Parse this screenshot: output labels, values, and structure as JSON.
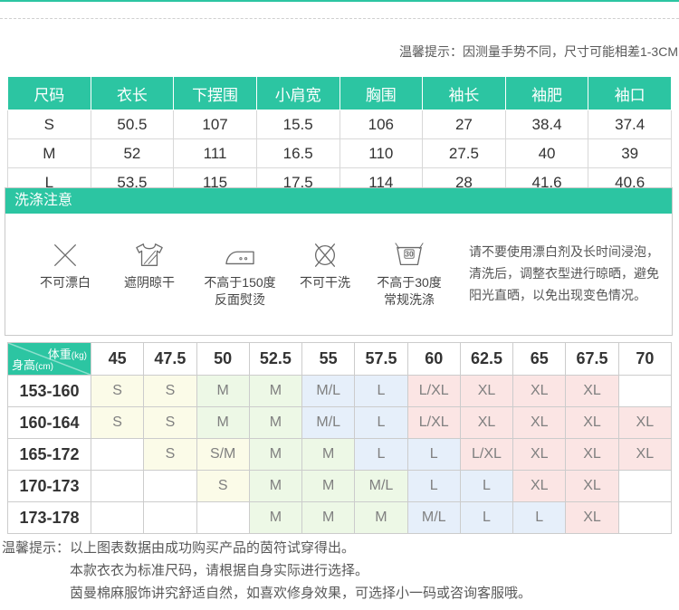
{
  "top_note": "温馨提示：因测量手势不同，尺寸可能相差1-3CM",
  "size_table": {
    "headers": [
      "尺码",
      "衣长",
      "下摆围",
      "小肩宽",
      "胸围",
      "袖长",
      "袖肥",
      "袖口"
    ],
    "rows": [
      [
        "S",
        "50.5",
        "107",
        "15.5",
        "106",
        "27",
        "38.4",
        "37.4"
      ],
      [
        "M",
        "52",
        "111",
        "16.5",
        "110",
        "27.5",
        "40",
        "39"
      ],
      [
        "L",
        "53.5",
        "115",
        "17.5",
        "114",
        "28",
        "41.6",
        "40.6"
      ]
    ]
  },
  "washing": {
    "title": "洗涤注意",
    "icons": [
      {
        "icon": "no-bleach-icon",
        "label_lines": [
          "不可漂白"
        ]
      },
      {
        "icon": "shade-dry-icon",
        "label_lines": [
          "遮阴晾干"
        ]
      },
      {
        "icon": "iron-150-icon",
        "label_lines": [
          "不高于150度",
          "反面熨烫"
        ]
      },
      {
        "icon": "no-dry-clean-icon",
        "label_lines": [
          "不可干洗"
        ]
      },
      {
        "icon": "wash-30-icon",
        "label_lines": [
          "不高于30度",
          "常规洗涤"
        ],
        "badge": "30"
      }
    ],
    "note_lines": [
      "请不要使用漂白剂及长时间浸泡，",
      "清洗后，调整衣型进行晾晒，避免",
      "阳光直晒，以免出现变色情况。"
    ]
  },
  "matrix": {
    "corner": {
      "weight": "体重",
      "weight_unit": "(kg)",
      "height": "身高",
      "height_unit": "(cm)"
    },
    "weights": [
      "45",
      "47.5",
      "50",
      "52.5",
      "55",
      "57.5",
      "60",
      "62.5",
      "65",
      "67.5",
      "70"
    ],
    "rows": [
      {
        "label": "153-160",
        "cells": [
          [
            "S",
            "cream"
          ],
          [
            "S",
            "cream"
          ],
          [
            "M",
            "green"
          ],
          [
            "M",
            "green"
          ],
          [
            "M/L",
            "blue"
          ],
          [
            "L",
            "blue"
          ],
          [
            "L/XL",
            "pink"
          ],
          [
            "XL",
            "pink"
          ],
          [
            "XL",
            "pink"
          ],
          [
            "XL",
            "pink"
          ],
          [
            "",
            "white"
          ]
        ]
      },
      {
        "label": "160-164",
        "cells": [
          [
            "S",
            "cream"
          ],
          [
            "S",
            "cream"
          ],
          [
            "M",
            "green"
          ],
          [
            "M",
            "green"
          ],
          [
            "M/L",
            "blue"
          ],
          [
            "L",
            "blue"
          ],
          [
            "L/XL",
            "pink"
          ],
          [
            "XL",
            "pink"
          ],
          [
            "XL",
            "pink"
          ],
          [
            "XL",
            "pink"
          ],
          [
            "XL",
            "pink"
          ]
        ]
      },
      {
        "label": "165-172",
        "cells": [
          [
            "",
            "white"
          ],
          [
            "S",
            "cream"
          ],
          [
            "S/M",
            "cream"
          ],
          [
            "M",
            "green"
          ],
          [
            "M",
            "green"
          ],
          [
            "L",
            "blue"
          ],
          [
            "L",
            "blue"
          ],
          [
            "L/XL",
            "pink"
          ],
          [
            "XL",
            "pink"
          ],
          [
            "XL",
            "pink"
          ],
          [
            "XL",
            "pink"
          ]
        ]
      },
      {
        "label": "170-173",
        "cells": [
          [
            "",
            "white"
          ],
          [
            "",
            "white"
          ],
          [
            "S",
            "cream"
          ],
          [
            "M",
            "green"
          ],
          [
            "M",
            "green"
          ],
          [
            "M/L",
            "green"
          ],
          [
            "L",
            "blue"
          ],
          [
            "L",
            "blue"
          ],
          [
            "XL",
            "pink"
          ],
          [
            "XL",
            "pink"
          ],
          [
            "",
            "white"
          ]
        ]
      },
      {
        "label": "173-178",
        "cells": [
          [
            "",
            "white"
          ],
          [
            "",
            "white"
          ],
          [
            "",
            "white"
          ],
          [
            "M",
            "green"
          ],
          [
            "M",
            "green"
          ],
          [
            "M",
            "green"
          ],
          [
            "M/L",
            "blue"
          ],
          [
            "L",
            "blue"
          ],
          [
            "L",
            "blue"
          ],
          [
            "XL",
            "pink"
          ],
          [
            "",
            "white"
          ]
        ]
      }
    ]
  },
  "cell_colors": {
    "cream": "#fbfbe8",
    "green": "#edf8e6",
    "blue": "#e6effa",
    "pink": "#fbe5e4",
    "white": "#ffffff"
  },
  "accent_color": "#2cc5a2",
  "bottom_tips": {
    "label": "温馨提示：",
    "lines": [
      "以上图表数据由成功购买产品的茵符试穿得出。",
      "本款衣衣为标准尺码，请根据自身实际进行选择。",
      "茵曼棉麻服饰讲究舒适自然，如喜欢修身效果，可选择小一码或咨询客服哦。"
    ]
  }
}
